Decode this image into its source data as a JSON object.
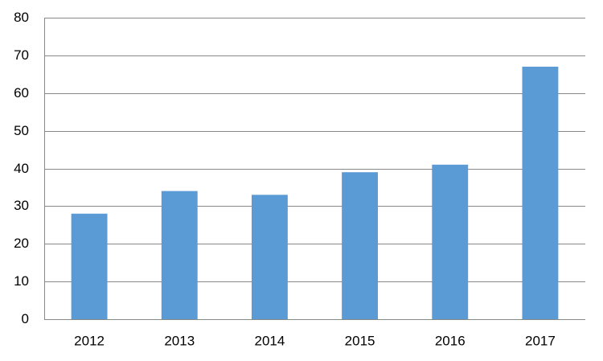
{
  "chart_data": {
    "type": "bar",
    "categories": [
      "2012",
      "2013",
      "2014",
      "2015",
      "2016",
      "2017"
    ],
    "values": [
      28,
      34,
      33,
      39,
      41,
      67
    ],
    "color": "#5b9bd5",
    "ylim": [
      0,
      80
    ],
    "yticks": [
      0,
      10,
      20,
      30,
      40,
      50,
      60,
      70,
      80
    ],
    "grid": true
  }
}
